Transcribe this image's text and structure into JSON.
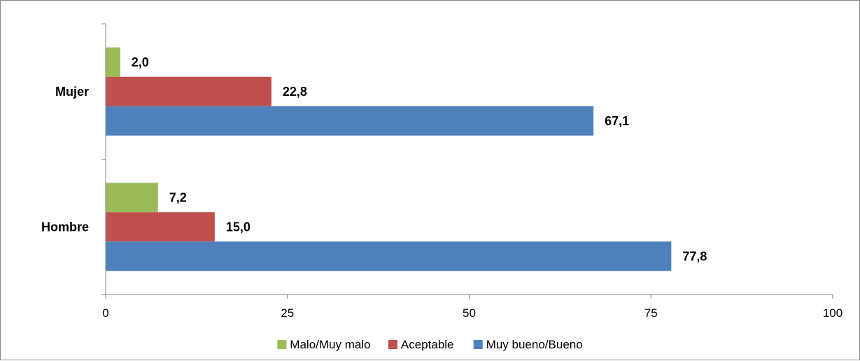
{
  "chart_data": {
    "type": "bar",
    "orientation": "horizontal",
    "categories": [
      "Mujer",
      "Hombre"
    ],
    "series": [
      {
        "name": "Malo/Muy malo",
        "color": "#9BBB59",
        "values": [
          2.0,
          7.2
        ],
        "labels": [
          "2,0",
          "7,2"
        ]
      },
      {
        "name": "Aceptable",
        "color": "#C0504D",
        "values": [
          22.8,
          15.0
        ],
        "labels": [
          "22,8",
          "15,0"
        ]
      },
      {
        "name": "Muy bueno/Bueno",
        "color": "#4F81BD",
        "values": [
          67.1,
          77.8
        ],
        "labels": [
          "67,1",
          "77,8"
        ]
      }
    ],
    "xlim": [
      0,
      100
    ],
    "xticks": [
      0,
      25,
      50,
      75,
      100
    ],
    "xtick_labels": [
      "0",
      "25",
      "50",
      "75",
      "100"
    ],
    "grid": false,
    "legend_position": "bottom",
    "title": "",
    "xlabel": "",
    "ylabel": ""
  }
}
